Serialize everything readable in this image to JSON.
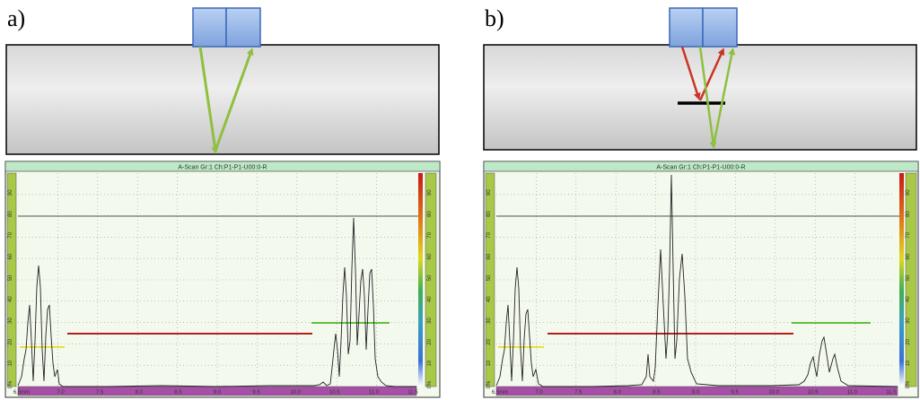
{
  "panels": [
    {
      "label": "a)",
      "scan_title": "A-Scan Gr:1 Ch:P1-P1-U00:0-R",
      "x_ticks": [
        "6.5mm",
        "7.0",
        "7.5",
        "8.0",
        "8.5",
        "9.0",
        "9.5",
        "10.0",
        "10.5",
        "11.0",
        "11.5"
      ],
      "y_ticks": [
        "0%",
        "10",
        "20",
        "30",
        "40",
        "50",
        "60",
        "70",
        "80",
        "90"
      ],
      "ray_colors": [
        "#8fbf3f",
        "#8fbf3f"
      ]
    },
    {
      "label": "b)",
      "scan_title": "A-Scan Gr:1 Ch:P1-P1-U00:0-R",
      "x_ticks": [
        "6.5mm",
        "7.0",
        "7.5",
        "8.0",
        "8.5",
        "9.0",
        "9.5",
        "10.0",
        "10.5",
        "11.0",
        "11.5"
      ],
      "y_ticks": [
        "0%",
        "10",
        "20",
        "30",
        "40",
        "50",
        "60",
        "70",
        "80",
        "90"
      ],
      "ray_colors": [
        "#cc3322",
        "#8fbf3f"
      ]
    }
  ],
  "colors": {
    "specimen_top": "#eeeeee",
    "specimen_bottom": "#c8c8c8",
    "probe": "#9ab8e8",
    "probe_border": "#3a68b8",
    "scan_header": "#bfe8c8",
    "plot_bg": "#f4f9ee",
    "ruler_green": "#a8c848",
    "ruler_purple": "#a64fa6",
    "gate_red": "#b02020",
    "gate_green": "#60c040",
    "gate_yellow": "#e8e040",
    "defect": "#000000"
  }
}
